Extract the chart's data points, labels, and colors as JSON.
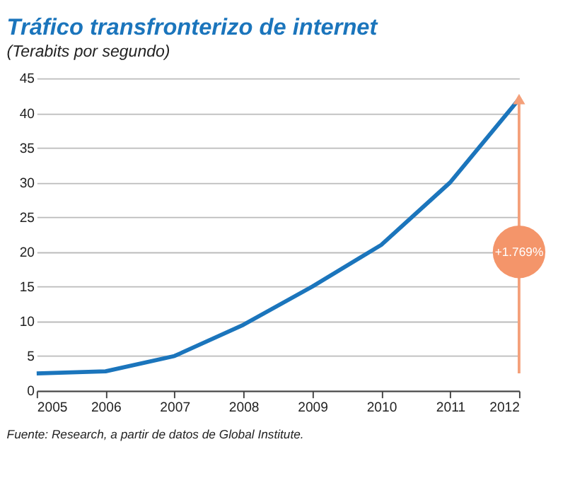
{
  "chart_data": {
    "type": "line",
    "title": "Tráfico transfronterizo de internet",
    "subtitle": "(Terabits por segundo)",
    "x": [
      2005,
      2006,
      2007,
      2008,
      2009,
      2010,
      2011,
      2012
    ],
    "series": [
      {
        "color": "#1b75bc",
        "values": [
          2.5,
          2.8,
          5,
          9.5,
          15,
          21,
          30,
          42
        ]
      }
    ],
    "xlim": [
      2005,
      2012
    ],
    "xticks": [
      2005,
      2006,
      2007,
      2008,
      2009,
      2010,
      2011,
      2012
    ],
    "ylim": [
      0,
      45
    ],
    "yticks": [
      0,
      5,
      10,
      15,
      20,
      25,
      30,
      35,
      40,
      45
    ],
    "grid": "y",
    "marker": "none",
    "line_style": "solid",
    "annotations": [
      {
        "text": "+1.769%",
        "x": 2012,
        "y": 20
      },
      "Fuente: Research, a partir de datos de Global Institute."
    ]
  }
}
